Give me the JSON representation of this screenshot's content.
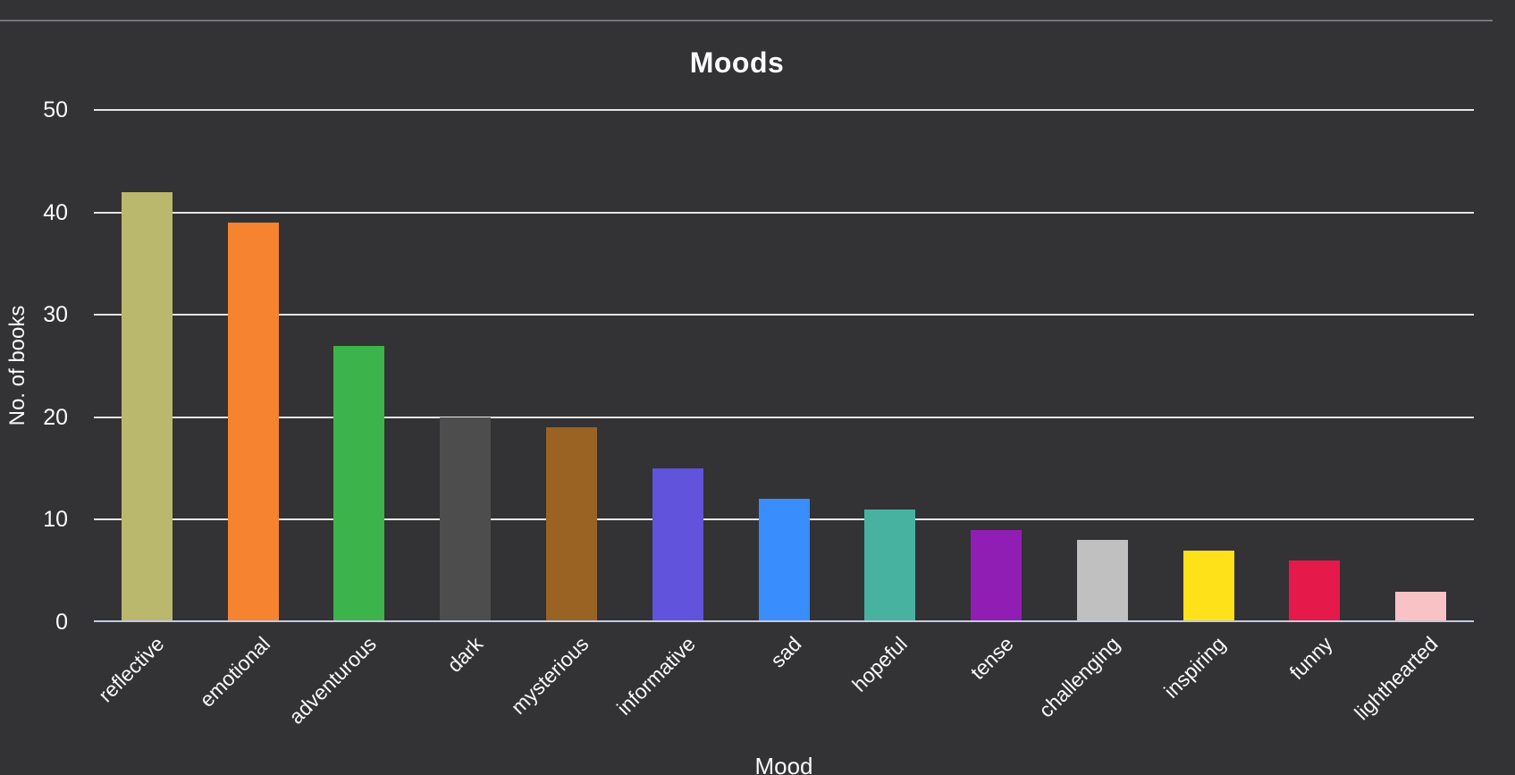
{
  "page": {
    "background_color": "#333234",
    "top_divider_color": "#75767a"
  },
  "chart": {
    "title": "Moods",
    "x_axis_title": "Mood",
    "y_axis_title": "No. of books"
  },
  "chart_data": {
    "type": "bar",
    "title": "Moods",
    "xlabel": "Mood",
    "ylabel": "No. of books",
    "categories": [
      "reflective",
      "emotional",
      "adventurous",
      "dark",
      "mysterious",
      "informative",
      "sad",
      "hopeful",
      "tense",
      "challenging",
      "inspiring",
      "funny",
      "lighthearted"
    ],
    "values": [
      42,
      39,
      27,
      20,
      19,
      15,
      12,
      11,
      9,
      8,
      7,
      6,
      3
    ],
    "bar_colors": [
      "#bab86c",
      "#f5832f",
      "#3cb44b",
      "#4d4d4d",
      "#9a6324",
      "#6153db",
      "#3a8dfd",
      "#48b2a0",
      "#911eb4",
      "#c0c0c0",
      "#ffe11a",
      "#e6194b",
      "#f9c2c5"
    ],
    "y_ticks": [
      0,
      10,
      20,
      30,
      40,
      50
    ],
    "ylim": [
      0,
      50
    ],
    "grid": true,
    "gridline_color": "#e7e6e4",
    "axis_line_color": "#c3c9e2",
    "legend": "none",
    "x_label_rotation_deg": -45
  }
}
